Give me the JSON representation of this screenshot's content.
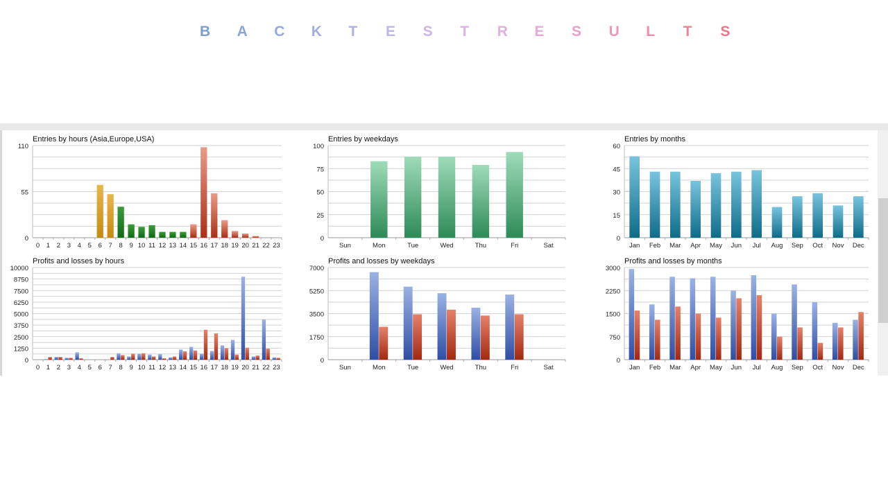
{
  "title_letters": [
    "B",
    "A",
    "C",
    "K",
    "T",
    "E",
    "S",
    "T",
    "R",
    "E",
    "S",
    "U",
    "L",
    "T",
    "S"
  ],
  "title_colors": [
    "#7e9dd1",
    "#8aa3d8",
    "#95a9de",
    "#a0aee0",
    "#b0b0e6",
    "#c0b4e8",
    "#ceb4e8",
    "#d9b4e6",
    "#e2b0df",
    "#e7a9d6",
    "#ea9fc8",
    "#ec96b8",
    "#ee8ba6",
    "#ef8095",
    "#f07587"
  ],
  "chart_data": [
    {
      "type": "bar",
      "title": "Entries by hours (Asia,Europe,USA)",
      "categories": [
        "0",
        "1",
        "2",
        "3",
        "4",
        "5",
        "6",
        "7",
        "8",
        "9",
        "10",
        "11",
        "12",
        "13",
        "14",
        "15",
        "16",
        "17",
        "18",
        "19",
        "20",
        "21",
        "22",
        "23"
      ],
      "values": [
        0,
        0,
        0,
        0,
        0,
        0,
        63,
        52,
        37,
        16,
        13,
        15,
        7,
        7,
        7,
        16,
        108,
        53,
        21,
        8,
        5,
        2,
        0,
        0
      ],
      "ylim": [
        0,
        110
      ],
      "yticks": [
        "0",
        "55",
        "110"
      ]
    },
    {
      "type": "bar",
      "title": "Entries by weekdays",
      "categories": [
        "Sun",
        "Mon",
        "Tue",
        "Wed",
        "Thu",
        "Fri",
        "Sat"
      ],
      "values": [
        0,
        83,
        88,
        88,
        79,
        93,
        0
      ],
      "ylim": [
        0,
        100
      ],
      "yticks": [
        "0",
        "25",
        "50",
        "75",
        "100"
      ]
    },
    {
      "type": "bar",
      "title": "Entries by months",
      "categories": [
        "Jan",
        "Feb",
        "Mar",
        "Apr",
        "May",
        "Jun",
        "Jul",
        "Aug",
        "Sep",
        "Oct",
        "Nov",
        "Dec"
      ],
      "values": [
        53,
        43,
        43,
        37,
        42,
        43,
        44,
        20,
        27,
        29,
        21,
        27
      ],
      "ylim": [
        0,
        60
      ],
      "yticks": [
        "0",
        "15",
        "30",
        "45",
        "60"
      ]
    },
    {
      "type": "bar",
      "title": "Profits and losses by hours",
      "categories": [
        "0",
        "1",
        "2",
        "3",
        "4",
        "5",
        "6",
        "7",
        "8",
        "9",
        "10",
        "11",
        "12",
        "13",
        "14",
        "15",
        "16",
        "17",
        "18",
        "19",
        "20",
        "21",
        "22",
        "23"
      ],
      "series": [
        {
          "values": [
            0,
            50,
            300,
            200,
            800,
            0,
            0,
            0,
            700,
            350,
            650,
            550,
            600,
            250,
            1100,
            1400,
            650,
            950,
            1550,
            2150,
            9000,
            350,
            4350,
            250
          ]
        },
        {
          "values": [
            0,
            300,
            300,
            200,
            150,
            0,
            0,
            300,
            500,
            650,
            700,
            350,
            150,
            350,
            900,
            1000,
            3250,
            2850,
            1250,
            550,
            1300,
            450,
            1200,
            200
          ]
        }
      ],
      "ylim": [
        0,
        10000
      ],
      "yticks": [
        "0",
        "1250",
        "2500",
        "3750",
        "5000",
        "6250",
        "7500",
        "8750",
        "10000"
      ]
    },
    {
      "type": "bar",
      "title": "Profits and losses by weekdays",
      "categories": [
        "Sun",
        "Mon",
        "Tue",
        "Wed",
        "Thu",
        "Fri",
        "Sat"
      ],
      "series": [
        {
          "values": [
            0,
            6650,
            5550,
            5050,
            3950,
            4950,
            0
          ]
        },
        {
          "values": [
            0,
            2500,
            3450,
            3800,
            3350,
            3450,
            0
          ]
        }
      ],
      "ylim": [
        0,
        7000
      ],
      "yticks": [
        "0",
        "1750",
        "3500",
        "5250",
        "7000"
      ]
    },
    {
      "type": "bar",
      "title": "Profits and losses by months",
      "categories": [
        "Jan",
        "Feb",
        "Mar",
        "Apr",
        "May",
        "Jun",
        "Jul",
        "Aug",
        "Sep",
        "Oct",
        "Nov",
        "Dec"
      ],
      "series": [
        {
          "values": [
            2950,
            1800,
            2700,
            2650,
            2700,
            2250,
            2750,
            1500,
            2450,
            1870,
            1200,
            1300
          ]
        },
        {
          "values": [
            1600,
            1300,
            1730,
            1500,
            1370,
            2000,
            2100,
            750,
            1050,
            550,
            1050,
            1550
          ]
        }
      ],
      "ylim": [
        0,
        3000
      ],
      "yticks": [
        "0",
        "750",
        "1500",
        "2250",
        "3000"
      ]
    }
  ]
}
